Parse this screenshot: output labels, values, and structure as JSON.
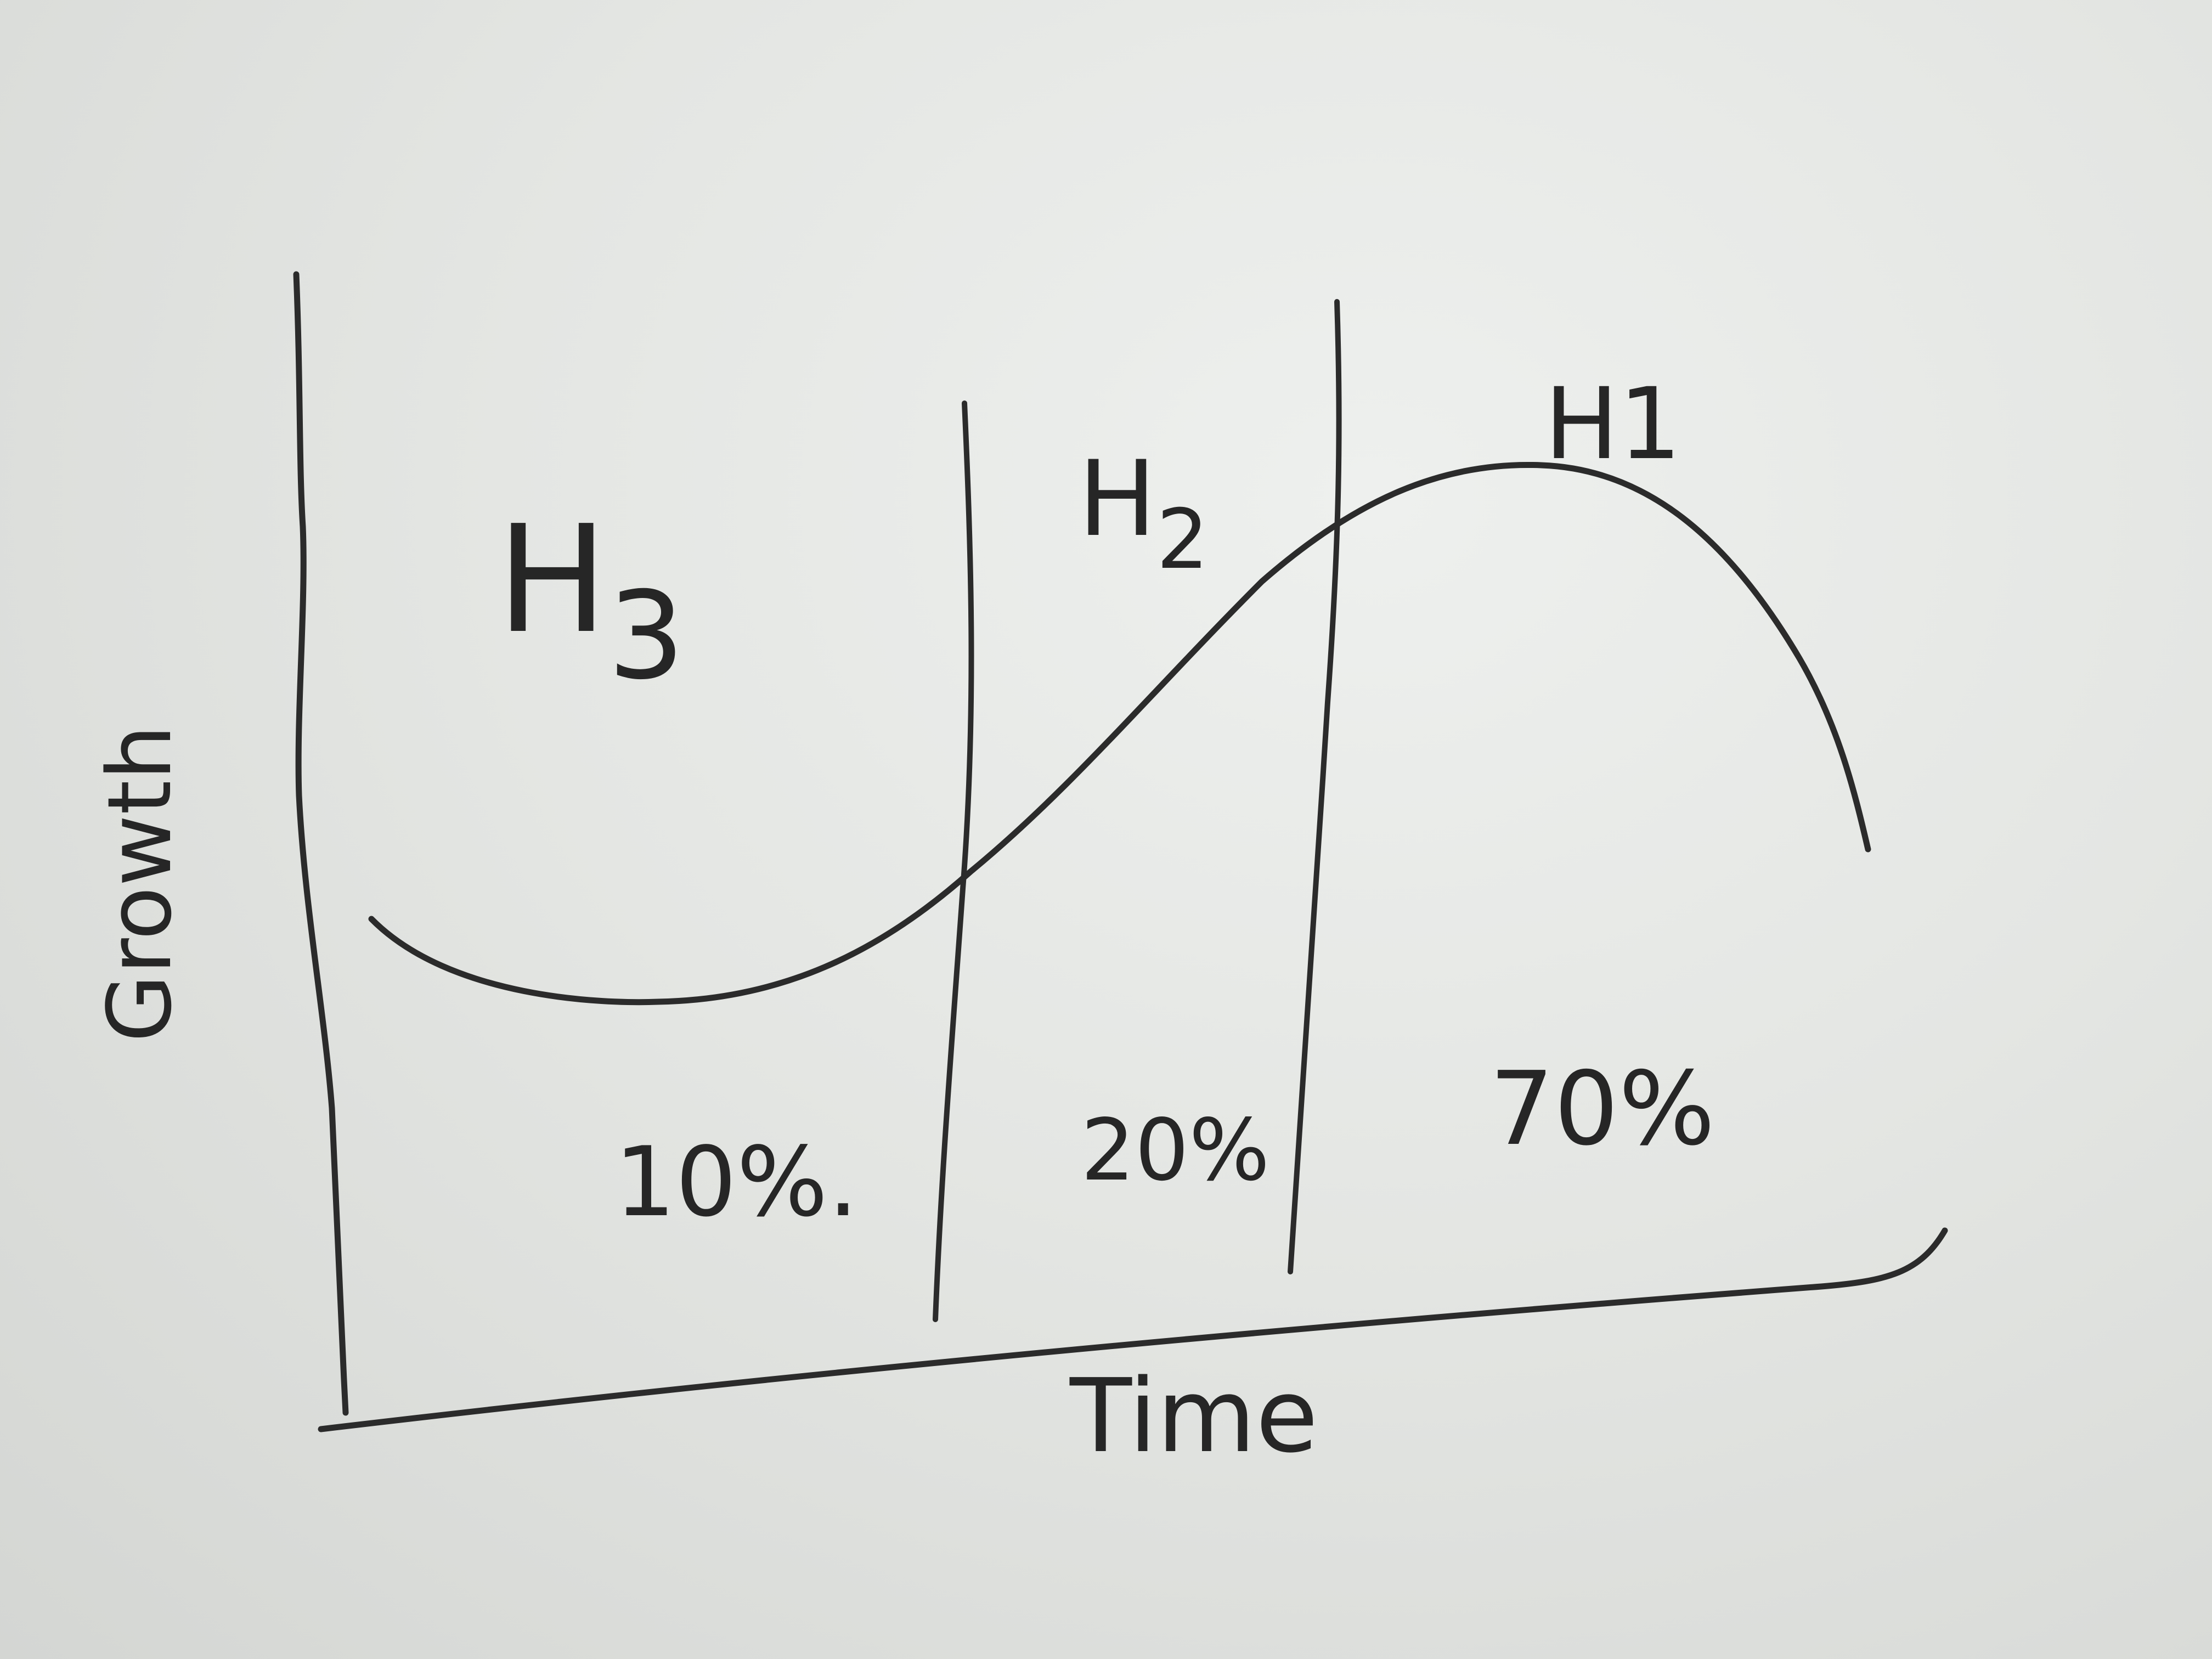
{
  "diagram": {
    "zones": [
      {
        "horizon": "H",
        "subscript": "3",
        "share": "10%."
      },
      {
        "horizon": "H",
        "subscript": "2",
        "share": "20%"
      },
      {
        "horizon": "H1",
        "subscript": "",
        "share": "70%"
      }
    ],
    "axis_labels": {
      "x": "Time",
      "y": "Growth"
    },
    "ink_color": "#2b2b2b",
    "board_color": "#e4e6e3"
  }
}
